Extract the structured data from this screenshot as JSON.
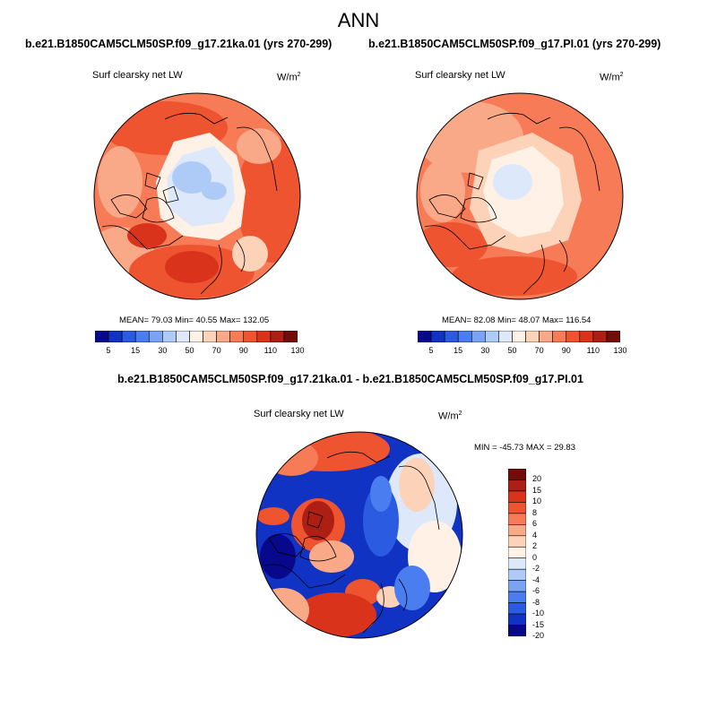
{
  "page_title": "ANN",
  "left_panel": {
    "heading": "b.e21.B1850CAM5CLM50SP.f09_g17.21ka.01 (yrs 270-299)",
    "variable": "Surf clearsky net LW",
    "units_base": "W/m",
    "units_exp": "2",
    "stats": "MEAN= 79.03  Min= 40.55  Max= 132.05"
  },
  "right_panel": {
    "heading": "b.e21.B1850CAM5CLM50SP.f09_g17.PI.01 (yrs 270-299)",
    "variable": "Surf clearsky net LW",
    "units_base": "W/m",
    "units_exp": "2",
    "stats": "MEAN= 82.08  Min= 48.07  Max= 116.54"
  },
  "diff_panel": {
    "heading": "b.e21.B1850CAM5CLM50SP.f09_g17.21ka.01 - b.e21.B1850CAM5CLM50SP.f09_g17.PI.01",
    "variable": "Surf clearsky net LW",
    "units_base": "W/m",
    "units_exp": "2",
    "stats": "MIN = -45.73 MAX =  29.83"
  },
  "field_colorbar": {
    "colors": [
      "#08088c",
      "#1133c4",
      "#2a5be0",
      "#4a7df0",
      "#7aa3f5",
      "#aecbf7",
      "#dde9fb",
      "#fff1e6",
      "#fcd3b9",
      "#f9a988",
      "#f67b56",
      "#ee5430",
      "#d9331c",
      "#ad1f14",
      "#730c08"
    ],
    "labels": [
      "5",
      "15",
      "30",
      "50",
      "70",
      "90",
      "110",
      "130"
    ]
  },
  "diff_colorbar": {
    "colors": [
      "#730c08",
      "#ad1f14",
      "#d9331c",
      "#ee5430",
      "#f67b56",
      "#f9a988",
      "#fcd3b9",
      "#fff1e6",
      "#dde9fb",
      "#aecbf7",
      "#7aa3f5",
      "#4a7df0",
      "#2a5be0",
      "#1133c4",
      "#08088c"
    ],
    "labels": [
      "20",
      "15",
      "10",
      "8",
      "6",
      "4",
      "2",
      "0",
      "-2",
      "-4",
      "-6",
      "-8",
      "-10",
      "-15",
      "-20"
    ]
  }
}
